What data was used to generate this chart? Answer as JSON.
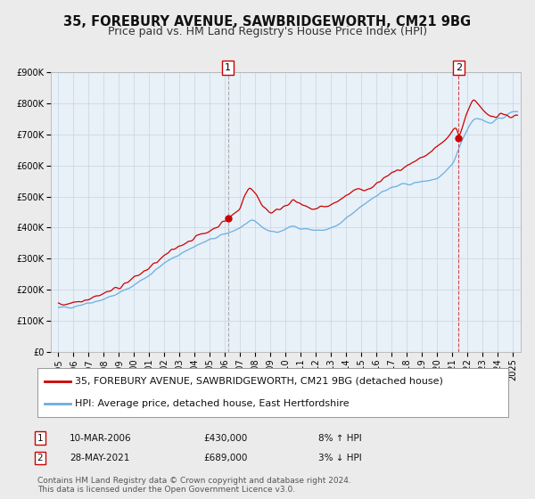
{
  "title": "35, FOREBURY AVENUE, SAWBRIDGEWORTH, CM21 9BG",
  "subtitle": "Price paid vs. HM Land Registry's House Price Index (HPI)",
  "ylim": [
    0,
    900000
  ],
  "yticks": [
    0,
    100000,
    200000,
    300000,
    400000,
    500000,
    600000,
    700000,
    800000,
    900000
  ],
  "ytick_labels": [
    "£0",
    "£100K",
    "£200K",
    "£300K",
    "£400K",
    "£500K",
    "£600K",
    "£700K",
    "£800K",
    "£900K"
  ],
  "xlim_start": 1994.5,
  "xlim_end": 2025.5,
  "xticks": [
    1995,
    1996,
    1997,
    1998,
    1999,
    2000,
    2001,
    2002,
    2003,
    2004,
    2005,
    2006,
    2007,
    2008,
    2009,
    2010,
    2011,
    2012,
    2013,
    2014,
    2015,
    2016,
    2017,
    2018,
    2019,
    2020,
    2021,
    2022,
    2023,
    2024,
    2025
  ],
  "sale1_x": 2006.19,
  "sale1_y": 430000,
  "sale1_label": "1",
  "sale1_date": "10-MAR-2006",
  "sale1_price": "£430,000",
  "sale1_hpi": "8% ↑ HPI",
  "sale2_x": 2021.41,
  "sale2_y": 689000,
  "sale2_label": "2",
  "sale2_date": "28-MAY-2021",
  "sale2_price": "£689,000",
  "sale2_hpi": "3% ↓ HPI",
  "house_color": "#cc0000",
  "hpi_color": "#6aaee0",
  "hpi_fill_color": "#ddeeff",
  "background_color": "#ebebeb",
  "plot_bg_color": "#e8f0f8",
  "grid_color": "#c8d4e0",
  "legend_line1": "35, FOREBURY AVENUE, SAWBRIDGEWORTH, CM21 9BG (detached house)",
  "legend_line2": "HPI: Average price, detached house, East Hertfordshire",
  "footnote": "Contains HM Land Registry data © Crown copyright and database right 2024.\nThis data is licensed under the Open Government Licence v3.0.",
  "title_fontsize": 10.5,
  "subtitle_fontsize": 9,
  "tick_fontsize": 7,
  "legend_fontsize": 8,
  "footnote_fontsize": 6.5
}
